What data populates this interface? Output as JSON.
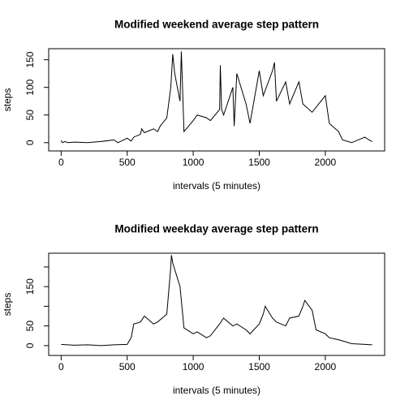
{
  "chart_data": [
    {
      "type": "line",
      "title": "Modified weekend average step pattern",
      "xlabel": "intervals (5 minutes)",
      "ylabel": "steps",
      "color": "#000000",
      "x": [
        0,
        10,
        30,
        50,
        100,
        200,
        300,
        400,
        430,
        500,
        530,
        550,
        600,
        610,
        630,
        700,
        730,
        750,
        800,
        830,
        845,
        860,
        880,
        900,
        910,
        930,
        1000,
        1030,
        1100,
        1130,
        1200,
        1205,
        1215,
        1230,
        1300,
        1310,
        1330,
        1400,
        1430,
        1500,
        1530,
        1600,
        1615,
        1630,
        1700,
        1730,
        1800,
        1830,
        1900,
        2000,
        2030,
        2100,
        2130,
        2200,
        2300,
        2330,
        2355
      ],
      "values": [
        4,
        0,
        2,
        0,
        1,
        0,
        2,
        5,
        0,
        8,
        3,
        10,
        15,
        25,
        18,
        25,
        20,
        30,
        45,
        100,
        160,
        125,
        100,
        75,
        165,
        20,
        40,
        50,
        45,
        40,
        60,
        140,
        60,
        50,
        100,
        30,
        125,
        70,
        35,
        130,
        85,
        130,
        145,
        75,
        110,
        70,
        110,
        70,
        55,
        85,
        35,
        20,
        5,
        0,
        10,
        5,
        2
      ],
      "xlim": [
        -94.2,
        2449.2
      ],
      "ylim": [
        -15,
        170
      ],
      "xticks": [
        0,
        500,
        1000,
        1500,
        2000
      ],
      "yticks": [
        0,
        50,
        100,
        150
      ]
    },
    {
      "type": "line",
      "title": "Modified weekday average step pattern",
      "xlabel": "intervals (5 minutes)",
      "ylabel": "steps",
      "color": "#000000",
      "x": [
        0,
        100,
        200,
        300,
        400,
        500,
        530,
        550,
        600,
        630,
        700,
        730,
        800,
        830,
        835,
        845,
        900,
        930,
        1000,
        1030,
        1100,
        1130,
        1200,
        1230,
        1300,
        1330,
        1400,
        1430,
        1500,
        1530,
        1545,
        1600,
        1630,
        1700,
        1730,
        1800,
        1830,
        1845,
        1900,
        1930,
        2000,
        2030,
        2100,
        2200,
        2300,
        2355
      ],
      "values": [
        3,
        1,
        2,
        0,
        2,
        3,
        20,
        55,
        60,
        75,
        55,
        60,
        80,
        200,
        230,
        210,
        150,
        45,
        30,
        35,
        20,
        25,
        55,
        70,
        50,
        55,
        40,
        30,
        55,
        80,
        100,
        70,
        60,
        50,
        70,
        75,
        100,
        115,
        90,
        40,
        30,
        20,
        15,
        5,
        3,
        2
      ],
      "xlim": [
        -94.2,
        2449.2
      ],
      "ylim": [
        -25,
        235
      ],
      "xticks": [
        0,
        500,
        1000,
        1500,
        2000
      ],
      "yticks": [
        0,
        50,
        {
          "value": 100,
          "label": null
        },
        150,
        {
          "value": 200,
          "label": null
        }
      ]
    }
  ]
}
